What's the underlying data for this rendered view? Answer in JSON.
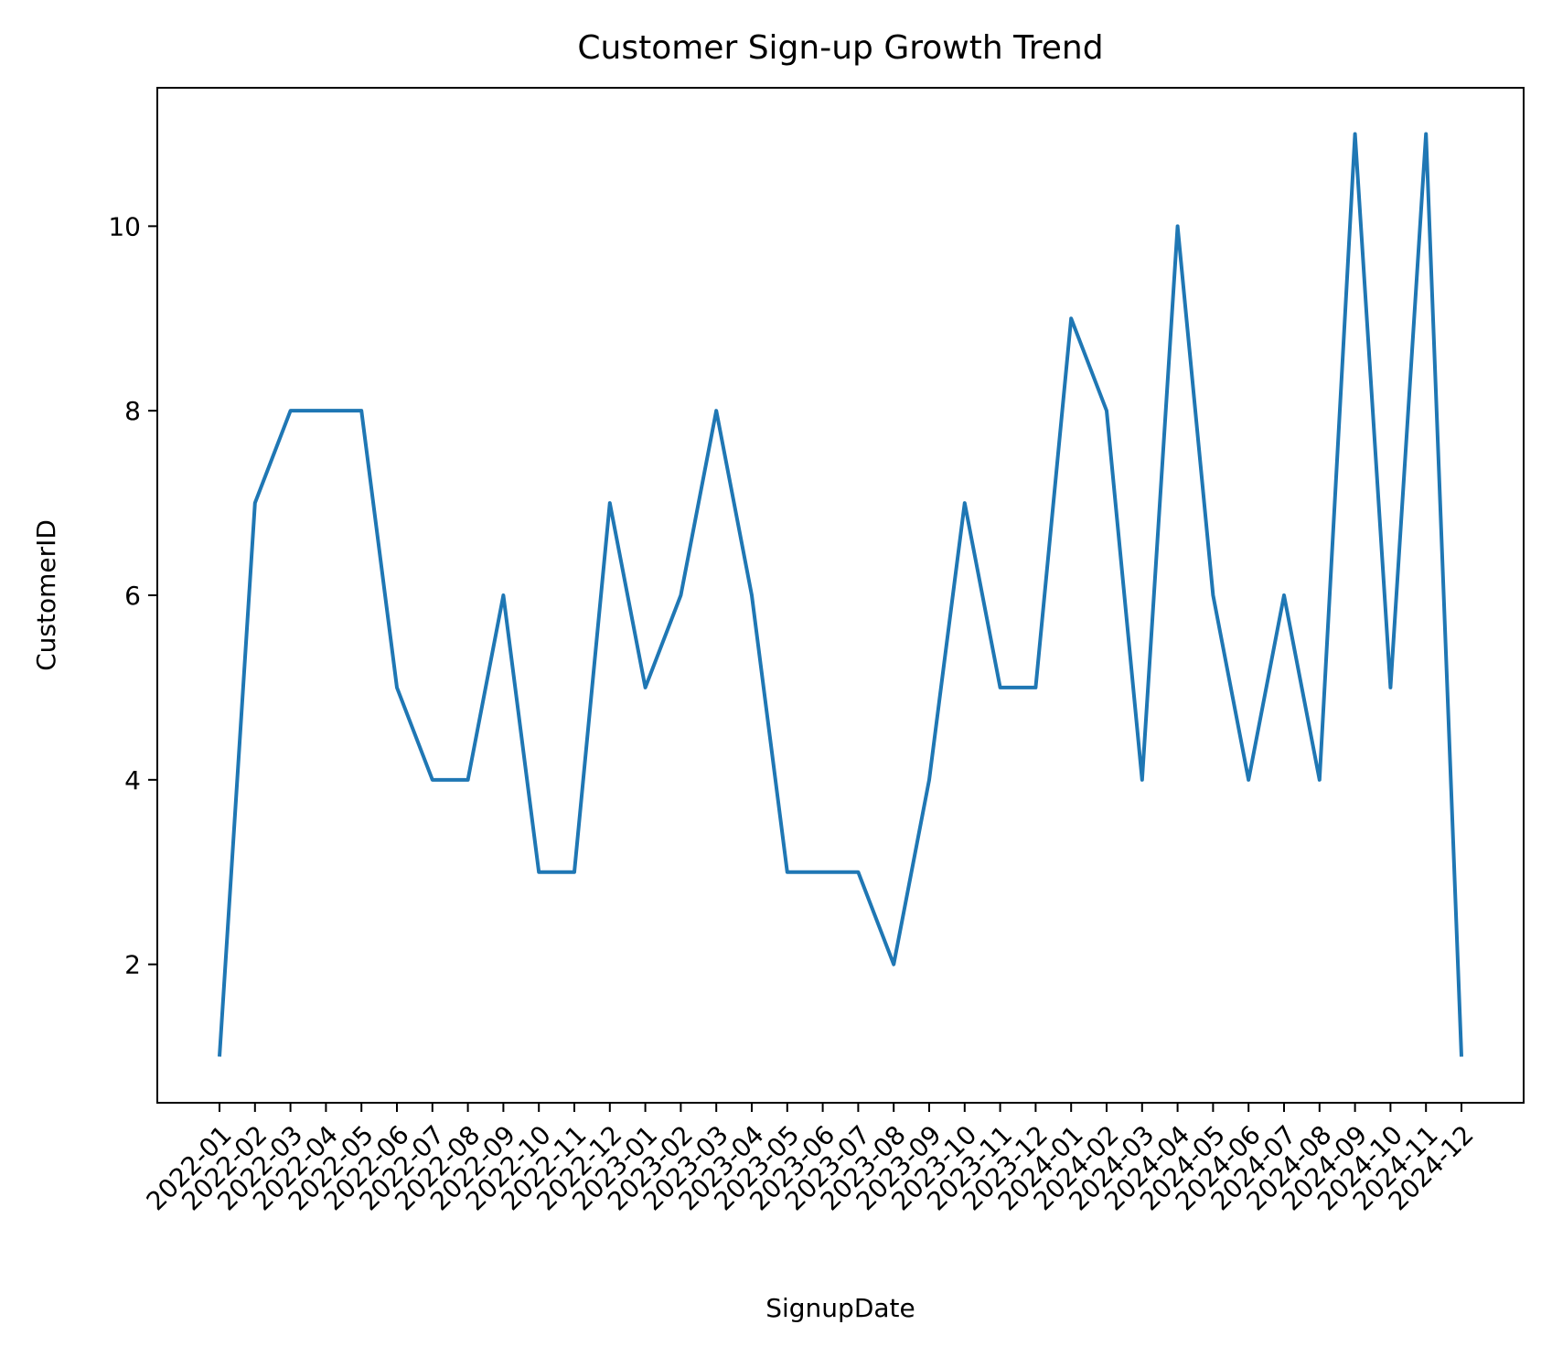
{
  "chart_data": {
    "type": "line",
    "title": "Customer Sign-up Growth Trend",
    "xlabel": "SignupDate",
    "ylabel": "CustomerID",
    "x": [
      "2022-01",
      "2022-02",
      "2022-03",
      "2022-04",
      "2022-05",
      "2022-06",
      "2022-07",
      "2022-08",
      "2022-09",
      "2022-10",
      "2022-11",
      "2022-12",
      "2023-01",
      "2023-02",
      "2023-03",
      "2023-04",
      "2023-05",
      "2023-06",
      "2023-07",
      "2023-08",
      "2023-09",
      "2023-10",
      "2023-11",
      "2023-12",
      "2024-01",
      "2024-02",
      "2024-03",
      "2024-04",
      "2024-05",
      "2024-06",
      "2024-07",
      "2024-08",
      "2024-09",
      "2024-10",
      "2024-11",
      "2024-12"
    ],
    "series": [
      {
        "values": [
          1,
          7,
          8,
          8,
          8,
          5,
          4,
          4,
          6,
          3,
          3,
          7,
          5,
          6,
          8,
          6,
          3,
          3,
          3,
          2,
          4,
          7,
          5,
          5,
          9,
          8,
          4,
          10,
          6,
          4,
          6,
          4,
          11,
          5,
          11,
          1
        ]
      }
    ],
    "ylim": [
      0.5,
      11.5
    ],
    "yticks": [
      2,
      4,
      6,
      8,
      10
    ],
    "grid": false,
    "legend": "none",
    "line_color": "#1f77b4"
  }
}
